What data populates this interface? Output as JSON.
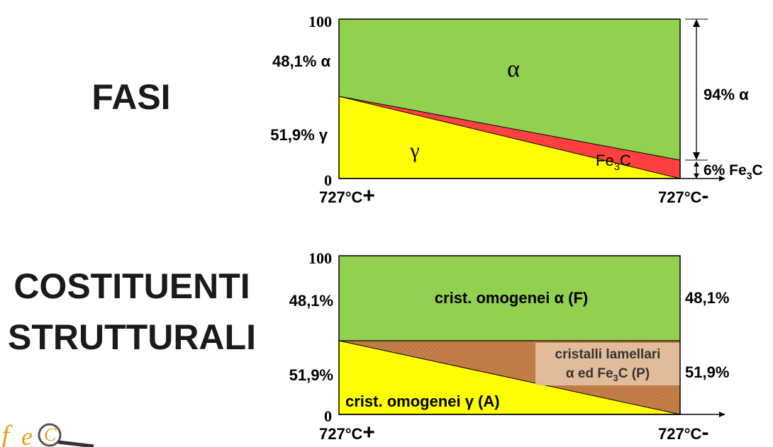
{
  "colors": {
    "alpha": "#92d050",
    "gamma": "#ffff00",
    "cementite": "#ff4040",
    "pearlite": "#c8834a",
    "pearlite_box": "#e8c8a8",
    "axis": "#000000"
  },
  "phases": {
    "heading": "FASI",
    "y_max": "100",
    "y_min": "0",
    "left_alpha": "48,1% α",
    "left_gamma": "51,9% γ",
    "alpha_label": "α",
    "gamma_label": "γ",
    "fe3c_label": "Fe3C",
    "right_alpha": "94% α",
    "right_fe3c": "6% Fe3C",
    "x_left": "727°C",
    "x_left_sign": "+",
    "x_right": "727°C",
    "x_right_sign": "-",
    "values": {
      "alpha_left_pct": 48.1,
      "gamma_left_pct": 51.9,
      "alpha_right_pct": 94,
      "fe3c_right_pct": 6
    }
  },
  "constituents": {
    "heading_line1": "COSTITUENTI",
    "heading_line2": "STRUTTURALI",
    "y_max": "100",
    "y_min": "0",
    "left_top": "48,1%",
    "left_bottom": "51,9%",
    "right_top": "48,1%",
    "right_bottom": "51,9%",
    "alpha_label": "crist. omogenei α (F)",
    "gamma_label": "crist. omogenei γ (A)",
    "pearlite_line1": "cristalli lamellari",
    "pearlite_line2": "α ed Fe3C (P)",
    "x_left": "727°C",
    "x_left_sign": "+",
    "x_right": "727°C",
    "x_right_sign": "-"
  }
}
